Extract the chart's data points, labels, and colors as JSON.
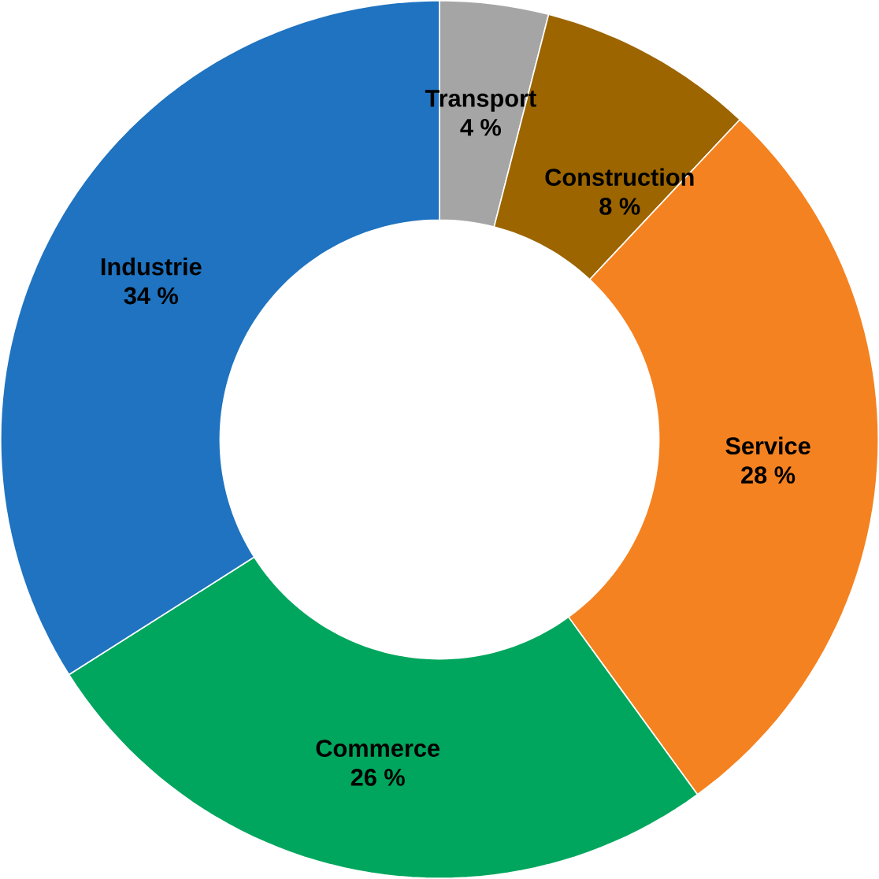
{
  "chart_data": {
    "type": "donut",
    "categories": [
      "Transport",
      "Construction",
      "Service",
      "Commerce",
      "Industrie"
    ],
    "values": [
      4,
      8,
      28,
      26,
      34
    ],
    "colors": [
      "#a5a5a5",
      "#9c6500",
      "#f58220",
      "#00a65d",
      "#1f73c0"
    ],
    "value_labels": [
      "4 %",
      "8 %",
      "28 %",
      "26 %",
      "34 %"
    ]
  }
}
